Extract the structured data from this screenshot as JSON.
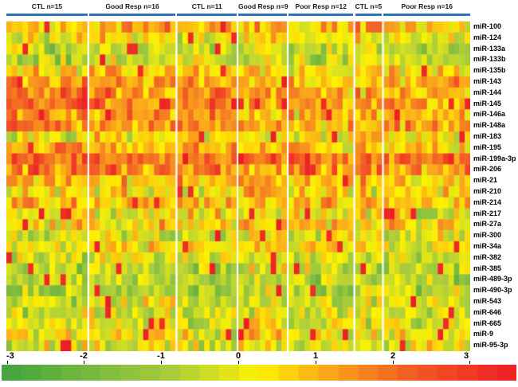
{
  "figure": {
    "background_color": "#FFFFFF",
    "group_underline_color": "#2E75B6",
    "text_color": "#000000"
  },
  "chart_data": {
    "type": "heatmap",
    "group_labels": [
      "CTL n=15",
      "Good Resp n=16",
      "CTL n=11",
      "Good Resp n=9",
      "Poor Resp n=12",
      "CTL n=5",
      "Poor Resp n=16"
    ],
    "columns_per_group": [
      15,
      16,
      11,
      9,
      12,
      5,
      16
    ],
    "row_labels": [
      "miR-100",
      "miR-124",
      "miR-133a",
      "miR-133b",
      "miR-135b",
      "miR-143",
      "miR-144",
      "miR-145",
      "miR-146a",
      "miR-148a",
      "miR-183",
      "miR-195",
      "miR-199a-3p",
      "miR-206",
      "miR-21",
      "miR-210",
      "miR-214",
      "miR-217",
      "miR-27a",
      "miR-300",
      "miR-34a",
      "miR-382",
      "miR-385",
      "miR-489-3p",
      "miR-490-3p",
      "miR-543",
      "miR-646",
      "miR-665",
      "miR-9",
      "miR-95-3p"
    ],
    "value_range": [
      -3,
      3
    ],
    "colorbar_ticks": [
      "-3",
      "-2",
      "-1",
      "0",
      "1",
      "2",
      "3"
    ],
    "colorbar_segments": 26,
    "color_stops": [
      {
        "value": -3,
        "color": "#40A33F"
      },
      {
        "value": -1,
        "color": "#AACD3C"
      },
      {
        "value": 0,
        "color": "#FFF200"
      },
      {
        "value": 0.8,
        "color": "#FAA61A"
      },
      {
        "value": 1.8,
        "color": "#F15A24"
      },
      {
        "value": 3,
        "color": "#ED1C24"
      }
    ],
    "group_means": [
      [
        0.6,
        0.7,
        0.6,
        0.9,
        0.4,
        1.0,
        0.5
      ],
      [
        -0.2,
        -0.1,
        -0.3,
        0.1,
        -0.2,
        0.0,
        -0.2
      ],
      [
        -1.0,
        -0.7,
        -0.9,
        -0.4,
        -0.7,
        -0.5,
        -0.7
      ],
      [
        -0.9,
        -0.7,
        -0.8,
        -0.4,
        -0.7,
        -0.4,
        -0.7
      ],
      [
        0.2,
        0.3,
        0.4,
        0.4,
        0.2,
        0.4,
        0.1
      ],
      [
        1.3,
        0.9,
        1.1,
        0.6,
        0.5,
        0.6,
        0.7
      ],
      [
        1.7,
        1.1,
        1.4,
        0.8,
        0.6,
        0.8,
        0.8
      ],
      [
        1.8,
        1.4,
        1.5,
        1.0,
        0.8,
        1.0,
        1.0
      ],
      [
        1.0,
        0.8,
        1.0,
        0.6,
        0.5,
        0.8,
        0.8
      ],
      [
        1.4,
        1.0,
        1.2,
        0.8,
        0.6,
        0.8,
        1.0
      ],
      [
        -0.2,
        0.0,
        0.0,
        0.2,
        0.0,
        0.2,
        0.0
      ],
      [
        0.7,
        0.5,
        0.7,
        0.5,
        0.4,
        0.5,
        0.5
      ],
      [
        1.7,
        1.5,
        1.7,
        1.5,
        1.4,
        1.5,
        1.5
      ],
      [
        1.3,
        1.1,
        1.2,
        1.0,
        0.9,
        1.0,
        0.9
      ],
      [
        0.5,
        0.5,
        0.5,
        0.7,
        0.5,
        0.5,
        0.5
      ],
      [
        0.0,
        0.2,
        0.0,
        0.4,
        0.2,
        0.0,
        0.2
      ],
      [
        0.7,
        0.5,
        0.5,
        0.5,
        0.3,
        0.5,
        0.4
      ],
      [
        -0.1,
        -0.2,
        0.0,
        0.0,
        -0.2,
        0.0,
        -0.2
      ],
      [
        0.3,
        0.2,
        0.3,
        0.3,
        0.2,
        0.3,
        0.2
      ],
      [
        -0.5,
        -0.3,
        -0.5,
        -0.1,
        -0.3,
        -0.3,
        -0.4
      ],
      [
        0.0,
        0.2,
        0.0,
        0.3,
        0.1,
        0.2,
        0.0
      ],
      [
        -0.5,
        -0.3,
        -0.5,
        -0.3,
        -0.4,
        -0.3,
        -0.5
      ],
      [
        -0.9,
        -0.7,
        -0.9,
        -0.5,
        -0.7,
        -0.5,
        -0.7
      ],
      [
        -1.0,
        -0.8,
        -0.9,
        -0.7,
        -0.9,
        -0.7,
        -0.9
      ],
      [
        -1.1,
        -0.9,
        -1.0,
        -0.7,
        -0.9,
        -0.7,
        -0.9
      ],
      [
        -0.7,
        -0.5,
        -0.7,
        -0.3,
        -0.5,
        -0.4,
        -0.5
      ],
      [
        -0.7,
        -0.4,
        -0.5,
        -0.2,
        -0.4,
        -0.3,
        -0.4
      ],
      [
        -0.5,
        -0.3,
        -0.4,
        -0.1,
        -0.3,
        -0.3,
        -0.3
      ],
      [
        -0.2,
        0.1,
        -0.2,
        0.3,
        0.0,
        0.1,
        0.0
      ],
      [
        -0.4,
        -0.3,
        -0.4,
        0.0,
        -0.3,
        -0.2,
        -0.3
      ]
    ],
    "noise_amplitude": 1.5,
    "hot_spot_rate": 0.035,
    "hot_spot_value": 2.6,
    "seed": 42
  }
}
